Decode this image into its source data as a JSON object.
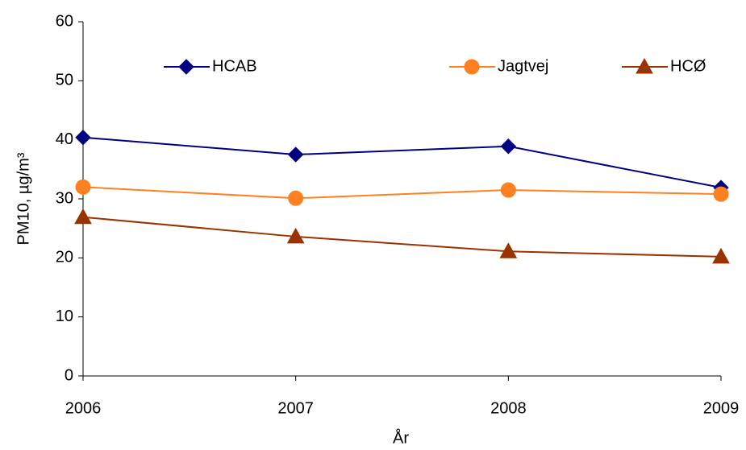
{
  "chart_data": {
    "type": "line",
    "x_label": "År",
    "y_label": "PM10, µg/m³",
    "x": [
      2006,
      2007,
      2008,
      2009
    ],
    "xlim": [
      2006,
      2009
    ],
    "xticks": [
      2006,
      2007,
      2008,
      2009
    ],
    "ylim": [
      0,
      60
    ],
    "yticks": [
      0,
      10,
      20,
      30,
      40,
      50,
      60
    ],
    "grid": false,
    "legend": "top",
    "series": [
      {
        "name": "HCAB",
        "color": "#000080",
        "marker": "diamond",
        "values": [
          40.4,
          37.5,
          38.9,
          31.9
        ]
      },
      {
        "name": "Jagtvej",
        "color": "#ff8020",
        "marker": "circle",
        "values": [
          32.0,
          30.1,
          31.5,
          30.8
        ]
      },
      {
        "name": "HCØ",
        "color": "#993300",
        "marker": "triangle",
        "values": [
          26.9,
          23.6,
          21.1,
          20.2
        ]
      }
    ]
  }
}
